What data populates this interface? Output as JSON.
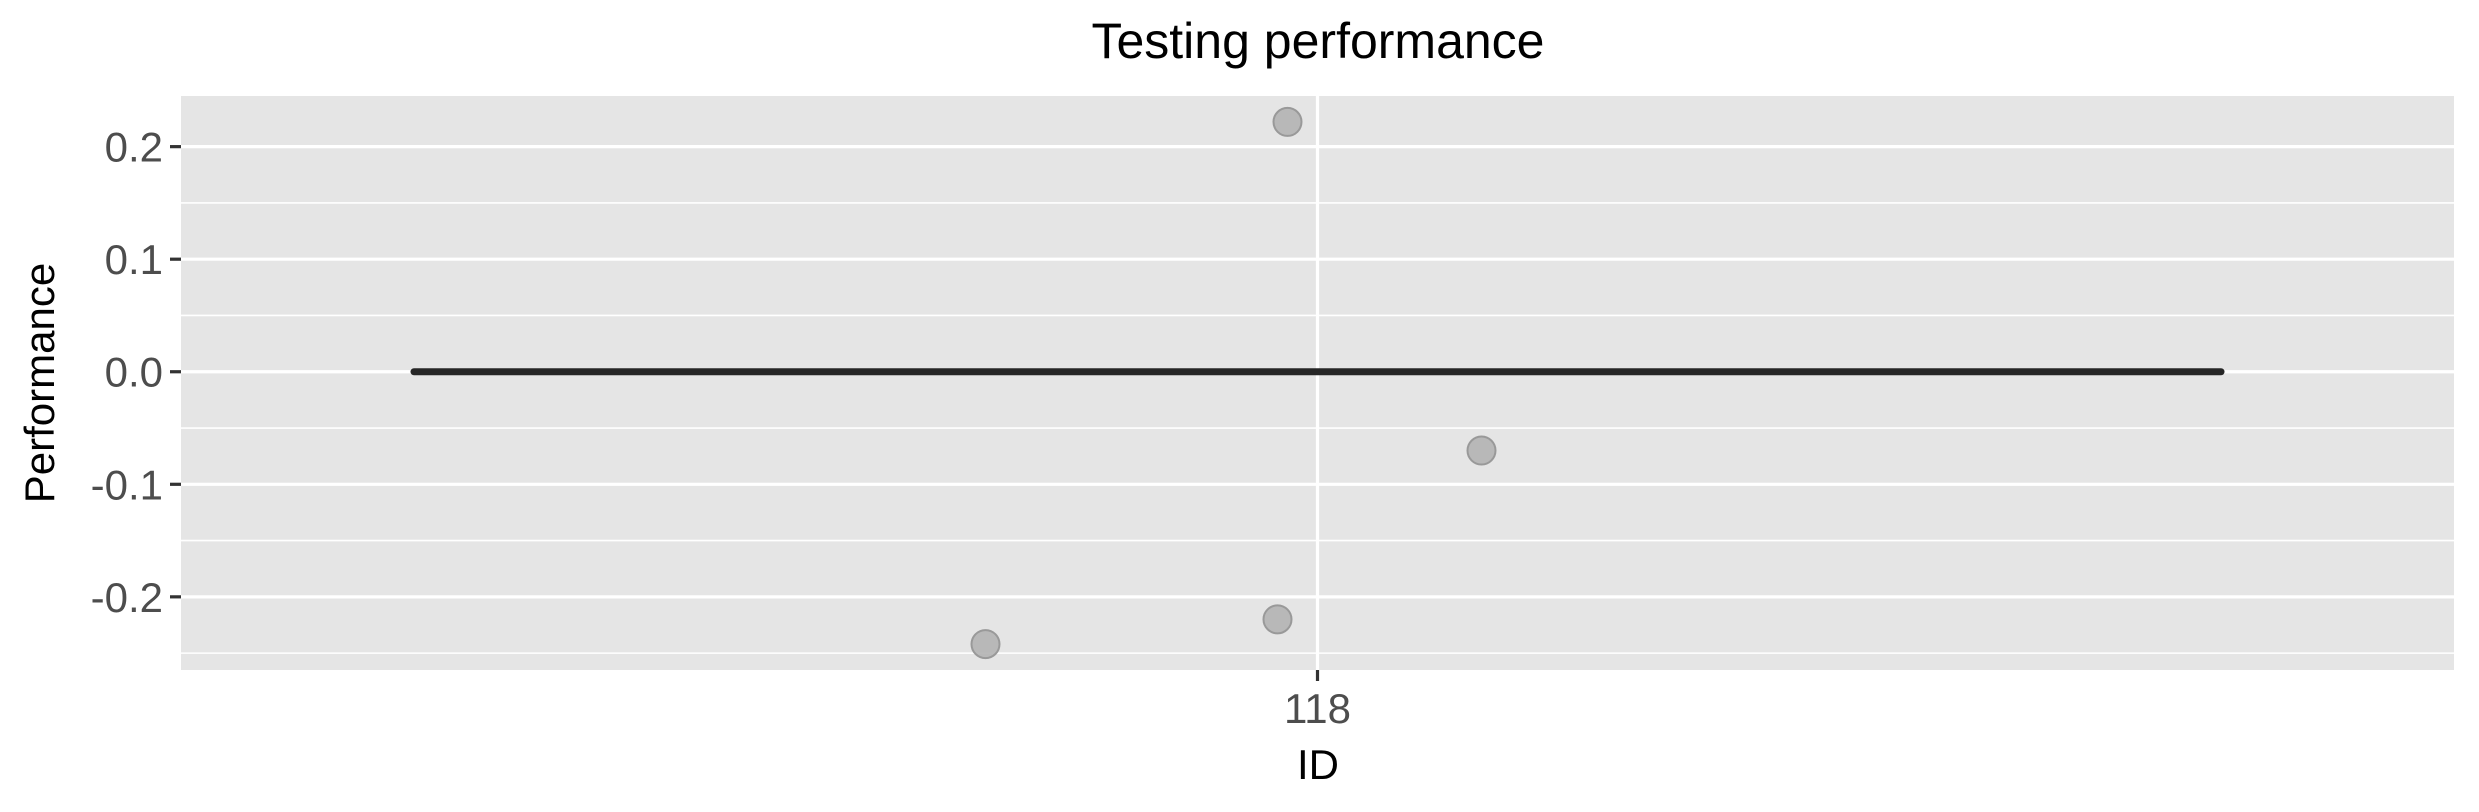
{
  "chart_data": {
    "type": "scatter",
    "title": "Testing performance",
    "xlabel": "ID",
    "ylabel": "Performance",
    "categories": [
      "118"
    ],
    "points": [
      {
        "category": "118",
        "y": 0.222
      },
      {
        "category": "118",
        "y": -0.07
      },
      {
        "category": "118",
        "y": -0.22
      },
      {
        "category": "118",
        "y": -0.242
      }
    ],
    "reference_line": {
      "y": 0.0
    },
    "ylim": [
      -0.265,
      0.245
    ],
    "yticks": [
      -0.2,
      -0.1,
      0.0,
      0.1,
      0.2
    ],
    "ytick_labels": [
      "-0.2",
      "-0.1",
      "0.0",
      "0.1",
      "0.2"
    ],
    "grid": true,
    "colors": {
      "panel": "#e5e5e5",
      "point": "#b3b3b3",
      "line": "#262626"
    }
  }
}
